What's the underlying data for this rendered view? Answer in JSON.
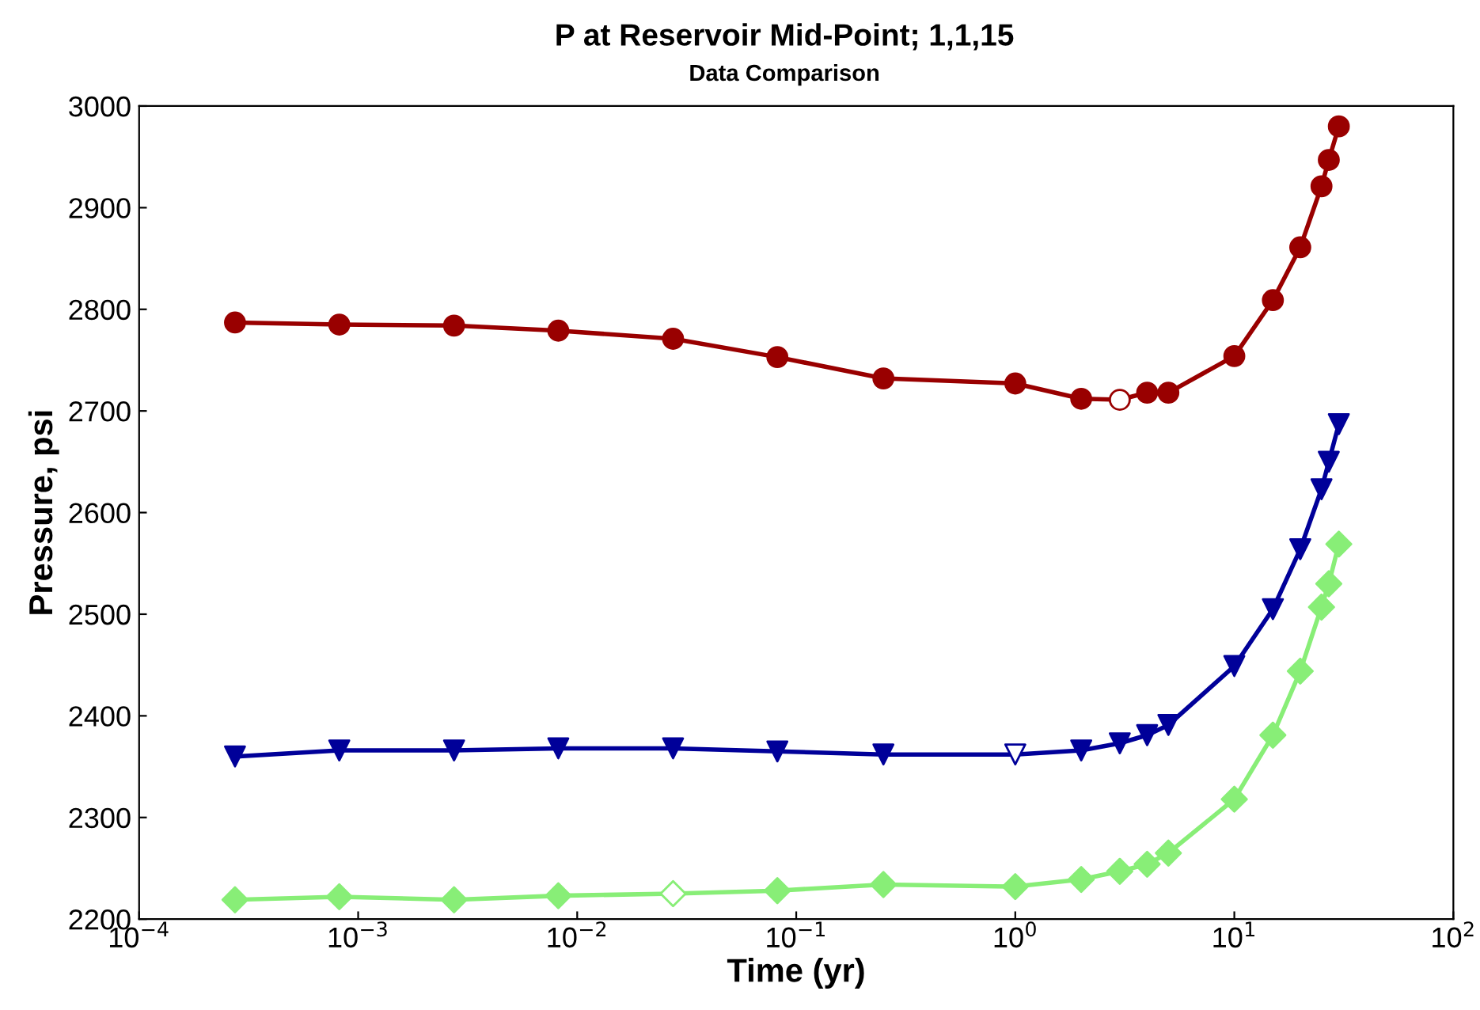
{
  "chart_data": {
    "type": "line",
    "title": "P at Reservoir Mid-Point; 1,1,15",
    "subtitle": "Data Comparison",
    "xlabel": "Time (yr)",
    "ylabel": "Pressure, psi",
    "log": "x",
    "x": [
      0.000274,
      0.00082,
      0.00274,
      0.0082,
      0.0274,
      0.082,
      0.25,
      1,
      2,
      3,
      4,
      5,
      10,
      15,
      20,
      25,
      27,
      30
    ],
    "xlim": [
      0.0001,
      100
    ],
    "xticks": [
      {
        "value": 0.0001,
        "label": "10$^{−4}$"
      },
      {
        "value": 0.001,
        "label": "10$^{−3}$"
      },
      {
        "value": 0.01,
        "label": "10$^{−2}$"
      },
      {
        "value": 0.1,
        "label": "10$^{−1}$"
      },
      {
        "value": 1,
        "label": "10$^{0}$"
      },
      {
        "value": 10,
        "label": "10$^{1}$"
      },
      {
        "value": 100,
        "label": "10$^{2}$"
      }
    ],
    "ylim": [
      2200,
      3000
    ],
    "yticks": [
      2200,
      2300,
      2400,
      2500,
      2600,
      2700,
      2800,
      2900,
      3000
    ],
    "grid": false,
    "legend": false,
    "series": [
      {
        "color": "#990000",
        "marker": "circle",
        "line_style": "solid",
        "values": [
          2787,
          2785,
          2784,
          2779,
          2771,
          2753,
          2732,
          2727,
          2712,
          2711,
          2718,
          2718,
          2754,
          2809,
          2861,
          2921,
          2947,
          2980
        ],
        "colors": [
          "#990000",
          "#990000",
          "#990000",
          "#990000",
          "#990000",
          "#990000",
          "#990000",
          "#990000",
          "#990000",
          "#ffffff",
          "#990000",
          "#990000",
          "#990000",
          "#990000",
          "#990000",
          "#990000",
          "#990000",
          "#990000"
        ]
      },
      {
        "color": "#000099",
        "marker": "triangle",
        "line_style": "solid",
        "values": [
          2360,
          2366,
          2366,
          2368,
          2368,
          2365,
          2362,
          2362,
          2366,
          2373,
          2381,
          2391,
          2449,
          2505,
          2564,
          2623,
          2650,
          2687
        ],
        "colors": [
          "#000099",
          "#000099",
          "#000099",
          "#000099",
          "#000099",
          "#000099",
          "#000099",
          "#ffffff",
          "#000099",
          "#000099",
          "#000099",
          "#000099",
          "#000099",
          "#000099",
          "#000099",
          "#000099",
          "#000099",
          "#000099"
        ]
      },
      {
        "color": "#88ee77",
        "marker": "diamond",
        "line_style": "solid",
        "values": [
          2219,
          2222,
          2219,
          2223,
          2225,
          2228,
          2234,
          2232,
          2239,
          2247,
          2254,
          2265,
          2318,
          2381,
          2444,
          2507,
          2530,
          2569
        ],
        "colors": [
          "#88ee77",
          "#88ee77",
          "#88ee77",
          "#88ee77",
          "#ffffff",
          "#88ee77",
          "#88ee77",
          "#88ee77",
          "#88ee77",
          "#88ee77",
          "#88ee77",
          "#88ee77",
          "#88ee77",
          "#88ee77",
          "#88ee77",
          "#88ee77",
          "#88ee77",
          "#88ee77"
        ]
      }
    ]
  }
}
